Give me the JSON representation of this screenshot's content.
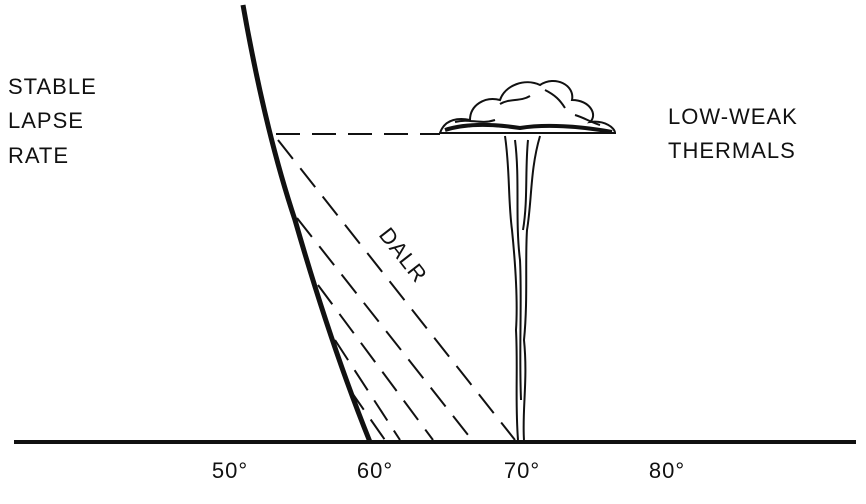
{
  "labels": {
    "left": [
      "STABLE",
      "LAPSE",
      "RATE"
    ],
    "right": [
      "LOW-WEAK",
      "THERMALS"
    ],
    "dalr": "DALR"
  },
  "axis": {
    "ticks": [
      "50°",
      "60°",
      "70°",
      "80°"
    ]
  }
}
